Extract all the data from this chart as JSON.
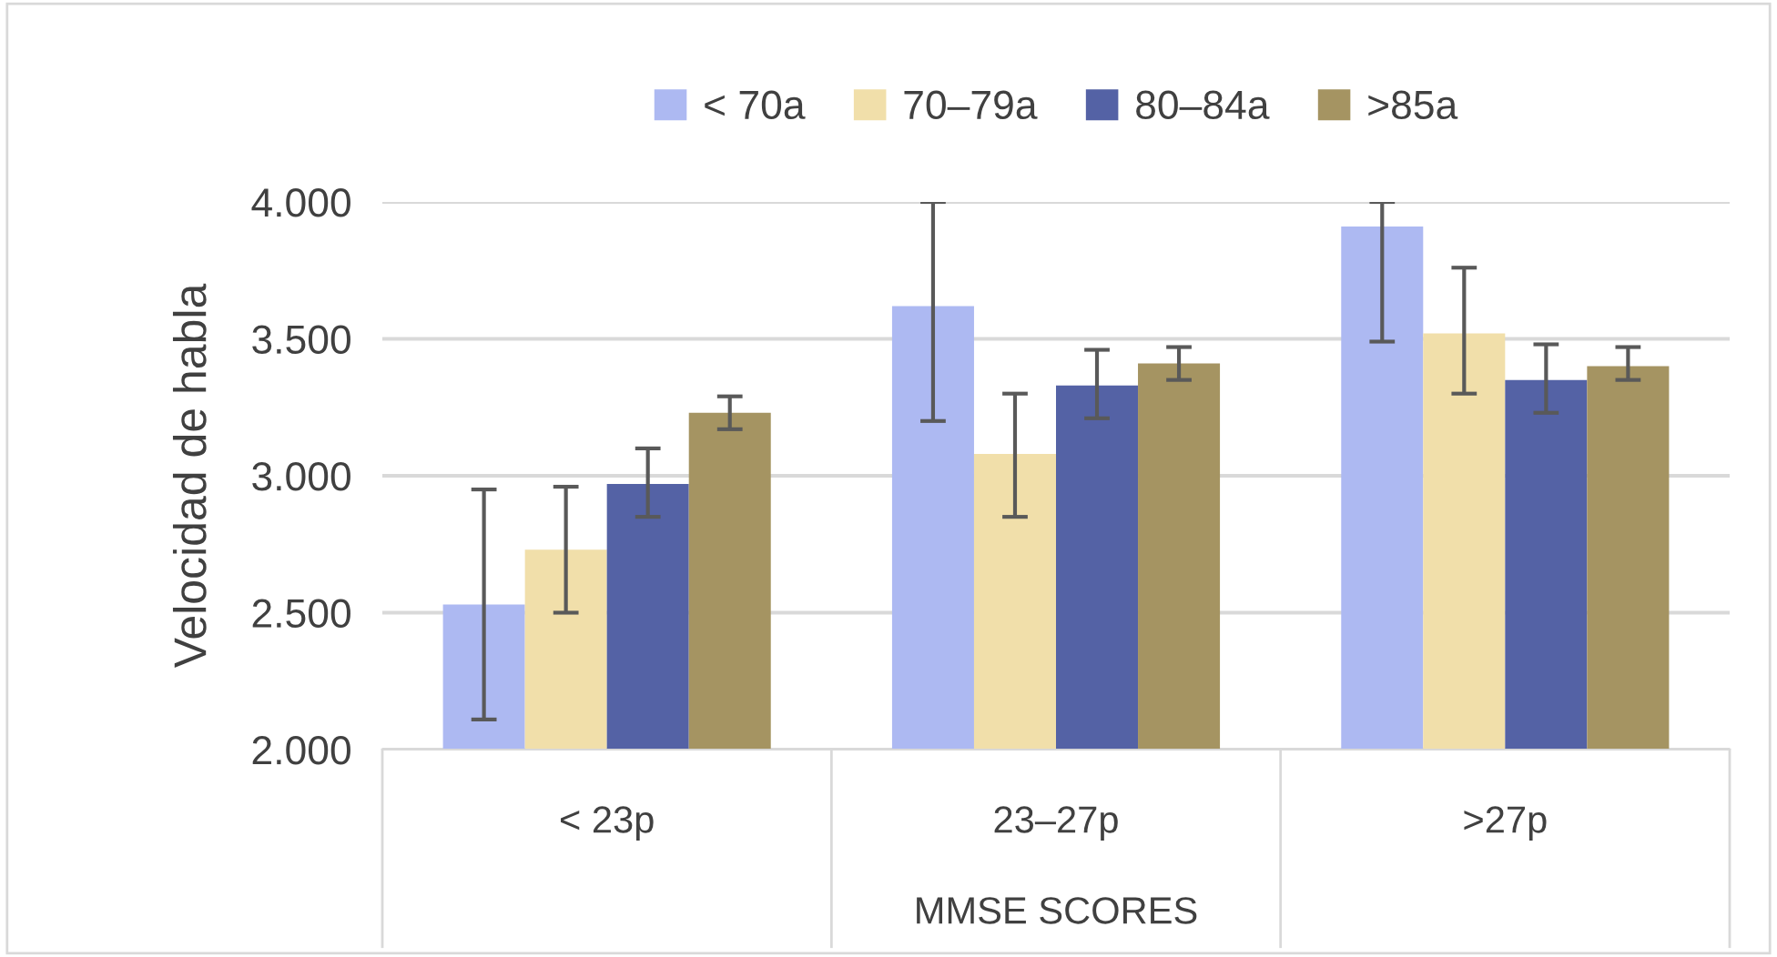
{
  "chart_data": {
    "type": "bar",
    "xlabel": "MMSE SCORES",
    "ylabel": "Velocidad de habla",
    "categories": [
      "< 23p",
      "23–27p",
      ">27p"
    ],
    "series": [
      {
        "name": "< 70a",
        "color": "#adb9f2",
        "values": [
          2530,
          3620,
          3910
        ],
        "errors": [
          [
            2110,
            2950
          ],
          [
            3200,
            4000
          ],
          [
            3490,
            4000
          ]
        ]
      },
      {
        "name": "70–79a",
        "color": "#f1dfaa",
        "values": [
          2730,
          3080,
          3520
        ],
        "errors": [
          [
            2500,
            2960
          ],
          [
            2850,
            3300
          ],
          [
            3300,
            3760
          ]
        ]
      },
      {
        "name": "80–84a",
        "color": "#5462a5",
        "values": [
          2970,
          3330,
          3350
        ],
        "errors": [
          [
            2850,
            3100
          ],
          [
            3210,
            3460
          ],
          [
            3230,
            3480
          ]
        ]
      },
      {
        "name": ">85a",
        "color": "#a59462",
        "values": [
          3230,
          3410,
          3400
        ],
        "errors": [
          [
            3170,
            3290
          ],
          [
            3350,
            3470
          ],
          [
            3350,
            3470
          ]
        ]
      }
    ],
    "ylim": [
      2000,
      4000
    ],
    "yticks": [
      {
        "value": 2000,
        "label": "2.000"
      },
      {
        "value": 2500,
        "label": "2.500"
      },
      {
        "value": 3000,
        "label": "3.000"
      },
      {
        "value": 3500,
        "label": "3.500"
      },
      {
        "value": 4000,
        "label": "4.000"
      }
    ],
    "grid": "y",
    "legend": "top"
  }
}
